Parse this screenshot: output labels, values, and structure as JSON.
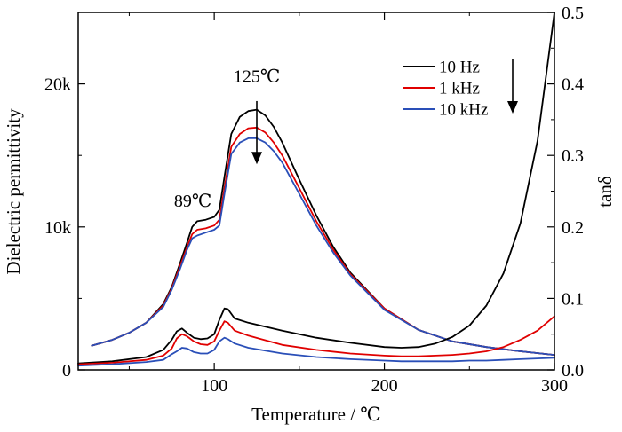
{
  "chart_data": {
    "type": "line",
    "title": "",
    "xlabel": "Temperature / ℃",
    "ylabel_left": "Dielectric permittivity",
    "ylabel_right": "tanδ",
    "xlim": [
      20,
      300
    ],
    "ylim_left": [
      0,
      25000
    ],
    "ylim_right": [
      0,
      0.5
    ],
    "x_ticks": [
      {
        "value": 100,
        "label": "100"
      },
      {
        "value": 200,
        "label": "200"
      },
      {
        "value": 300,
        "label": "300"
      }
    ],
    "y_left_ticks": [
      {
        "value": 0,
        "label": "0"
      },
      {
        "value": 10000,
        "label": "10k"
      },
      {
        "value": 20000,
        "label": "20k"
      }
    ],
    "y_right_ticks": [
      {
        "value": 0.0,
        "label": "0.0"
      },
      {
        "value": 0.1,
        "label": "0.1"
      },
      {
        "value": 0.2,
        "label": "0.2"
      },
      {
        "value": 0.3,
        "label": "0.3"
      },
      {
        "value": 0.4,
        "label": "0.4"
      },
      {
        "value": 0.5,
        "label": "0.5"
      }
    ],
    "grid": false,
    "legend_position": "top-right",
    "annotations": [
      {
        "text": "125℃",
        "x": 125,
        "y": 19500,
        "axis": "left"
      },
      {
        "text": "89℃",
        "x": 89,
        "y": 11400,
        "axis": "left"
      }
    ],
    "series": [
      {
        "name": "10 Hz",
        "color": "#000000",
        "kind": "permittivity",
        "axis": "left",
        "x": [
          28,
          40,
          50,
          60,
          70,
          75,
          80,
          84,
          87,
          90,
          95,
          100,
          103,
          106,
          110,
          115,
          120,
          125,
          130,
          135,
          140,
          150,
          160,
          170,
          180,
          200,
          220,
          240,
          260,
          280,
          300
        ],
        "y": [
          1700,
          2100,
          2600,
          3300,
          4600,
          5800,
          7500,
          8900,
          10000,
          10400,
          10500,
          10700,
          11200,
          13500,
          16500,
          17700,
          18100,
          18200,
          17800,
          17000,
          15900,
          13300,
          10800,
          8600,
          6800,
          4300,
          2800,
          2000,
          1600,
          1300,
          1050
        ]
      },
      {
        "name": "1 kHz",
        "color": "#e00000",
        "kind": "permittivity",
        "axis": "left",
        "x": [
          28,
          40,
          50,
          60,
          70,
          75,
          80,
          84,
          87,
          90,
          95,
          100,
          103,
          106,
          110,
          115,
          120,
          125,
          130,
          135,
          140,
          150,
          160,
          170,
          180,
          200,
          220,
          240,
          260,
          280,
          300
        ],
        "y": [
          1700,
          2100,
          2600,
          3300,
          4500,
          5700,
          7300,
          8600,
          9500,
          9800,
          9900,
          10100,
          10500,
          12700,
          15600,
          16500,
          16900,
          16950,
          16600,
          15900,
          15000,
          12700,
          10400,
          8400,
          6700,
          4300,
          2800,
          2000,
          1600,
          1300,
          1050
        ]
      },
      {
        "name": "10 kHz",
        "color": "#2a4fb8",
        "kind": "permittivity",
        "axis": "left",
        "x": [
          28,
          40,
          50,
          60,
          70,
          75,
          80,
          84,
          87,
          90,
          95,
          100,
          103,
          106,
          110,
          115,
          120,
          125,
          130,
          135,
          140,
          150,
          160,
          170,
          180,
          200,
          220,
          240,
          260,
          280,
          300
        ],
        "y": [
          1700,
          2100,
          2600,
          3300,
          4400,
          5600,
          7100,
          8400,
          9200,
          9400,
          9600,
          9800,
          10100,
          12300,
          15100,
          15900,
          16200,
          16200,
          15900,
          15300,
          14500,
          12300,
          10100,
          8200,
          6600,
          4200,
          2800,
          2000,
          1600,
          1300,
          1050
        ]
      },
      {
        "name": "10 Hz",
        "color": "#000000",
        "kind": "tan",
        "axis": "right",
        "x": [
          20,
          40,
          60,
          70,
          75,
          78,
          81,
          84,
          88,
          92,
          96,
          100,
          103,
          106,
          108,
          112,
          120,
          140,
          160,
          180,
          200,
          210,
          220,
          230,
          240,
          250,
          260,
          270,
          280,
          290,
          300
        ],
        "y": [
          0.009,
          0.012,
          0.018,
          0.028,
          0.042,
          0.054,
          0.058,
          0.052,
          0.045,
          0.043,
          0.044,
          0.05,
          0.07,
          0.086,
          0.085,
          0.072,
          0.066,
          0.055,
          0.045,
          0.038,
          0.032,
          0.031,
          0.032,
          0.037,
          0.046,
          0.062,
          0.09,
          0.135,
          0.205,
          0.32,
          0.5
        ]
      },
      {
        "name": "1 kHz",
        "color": "#e00000",
        "kind": "tan",
        "axis": "right",
        "x": [
          20,
          40,
          60,
          70,
          75,
          78,
          81,
          84,
          88,
          92,
          96,
          100,
          103,
          106,
          108,
          112,
          120,
          140,
          160,
          180,
          200,
          210,
          220,
          230,
          240,
          250,
          260,
          270,
          280,
          290,
          300
        ],
        "y": [
          0.008,
          0.01,
          0.014,
          0.02,
          0.03,
          0.044,
          0.05,
          0.047,
          0.04,
          0.036,
          0.035,
          0.04,
          0.055,
          0.068,
          0.066,
          0.055,
          0.048,
          0.035,
          0.028,
          0.023,
          0.02,
          0.019,
          0.019,
          0.02,
          0.021,
          0.023,
          0.026,
          0.032,
          0.042,
          0.055,
          0.075
        ]
      },
      {
        "name": "10 kHz",
        "color": "#2a4fb8",
        "kind": "tan",
        "axis": "right",
        "x": [
          20,
          40,
          60,
          70,
          75,
          78,
          81,
          84,
          88,
          92,
          96,
          100,
          103,
          106,
          108,
          112,
          120,
          140,
          160,
          180,
          200,
          210,
          220,
          230,
          240,
          250,
          260,
          270,
          280,
          290,
          300
        ],
        "y": [
          0.006,
          0.008,
          0.011,
          0.014,
          0.022,
          0.026,
          0.031,
          0.03,
          0.025,
          0.023,
          0.023,
          0.028,
          0.04,
          0.045,
          0.043,
          0.037,
          0.031,
          0.023,
          0.018,
          0.015,
          0.013,
          0.012,
          0.012,
          0.012,
          0.012,
          0.013,
          0.013,
          0.014,
          0.015,
          0.016,
          0.017
        ]
      }
    ]
  }
}
